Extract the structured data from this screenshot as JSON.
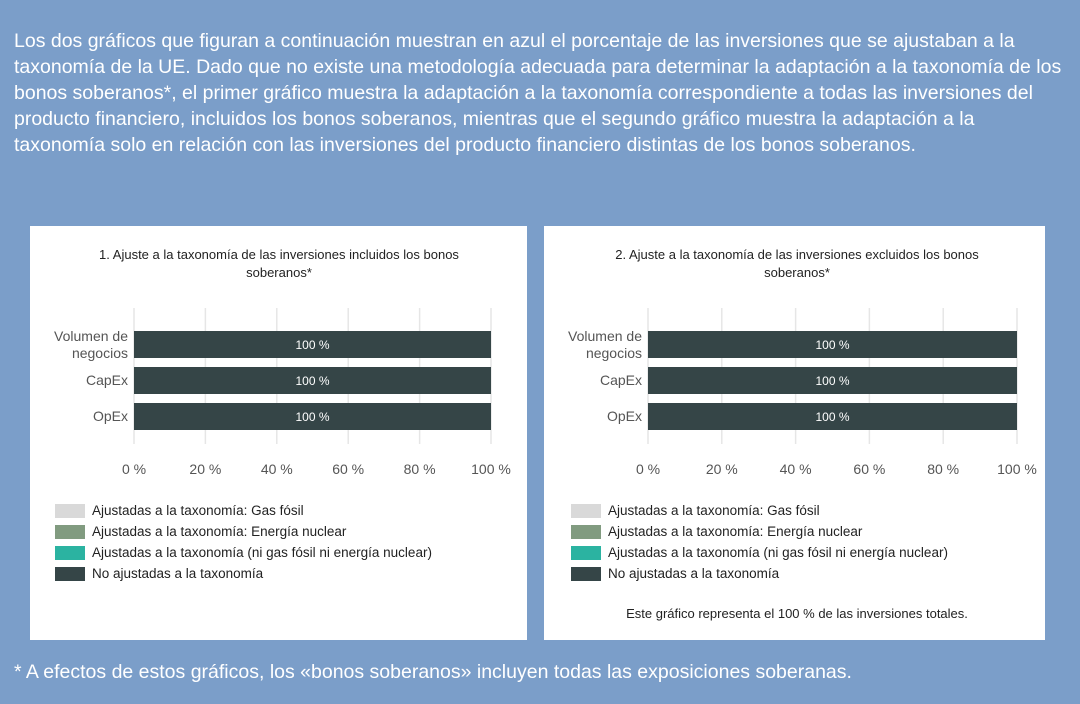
{
  "intro": "Los dos gráficos que figuran a continuación muestran en azul el porcentaje de las inversiones que se ajustaban a la taxonomía de la UE. Dado que no existe una metodología adecuada para determinar la adaptación a la taxonomía de los bonos soberanos*, el primer gráfico muestra la adaptación a la taxonomía correspondiente a todas las inversiones del producto financiero, incluidos los bonos soberanos, mientras que el segundo gráfico muestra la adaptación a la taxonomía solo en relación con las inversiones del producto financiero distintas de los bonos soberanos.",
  "footnote": "* A efectos de estos gráficos, los «bonos soberanos» incluyen todas las exposiciones soberanas.",
  "chart_data": [
    {
      "type": "stacked-barh",
      "title": "1. Ajuste a la taxonomía de las inversiones incluidos los bonos soberanos*",
      "categories": [
        "Volumen de negocios",
        "CapEx",
        "OpEx"
      ],
      "series": [
        {
          "name": "Ajustadas a la taxonomía: Gas fósil",
          "color": "#d9d9d9",
          "values": [
            0,
            0,
            0
          ]
        },
        {
          "name": "Ajustadas a la taxonomía: Energía nuclear",
          "color": "#819b80",
          "values": [
            0,
            0,
            0
          ]
        },
        {
          "name": "Ajustadas a la taxonomía (ni gas fósil ni energía nuclear)",
          "color": "#2bb3a1",
          "values": [
            0,
            0,
            0
          ]
        },
        {
          "name": "No ajustadas a la taxonomía",
          "color": "#354547",
          "values": [
            100,
            100,
            100
          ],
          "value_labels": [
            "100 %",
            "100 %",
            "100 %"
          ]
        }
      ],
      "xlim": [
        0,
        100
      ],
      "xticks": [
        {
          "value": 0,
          "label": "0 %"
        },
        {
          "value": 20,
          "label": "20 %"
        },
        {
          "value": 40,
          "label": "40 %"
        },
        {
          "value": 60,
          "label": "60 %"
        },
        {
          "value": 80,
          "label": "80 %"
        },
        {
          "value": 100,
          "label": "100 %"
        }
      ],
      "grid": true
    },
    {
      "type": "stacked-barh",
      "title": "2. Ajuste a la taxonomía de las inversiones excluidos los bonos soberanos*",
      "categories": [
        "Volumen de negocios",
        "CapEx",
        "OpEx"
      ],
      "series": [
        {
          "name": "Ajustadas a la taxonomía: Gas fósil",
          "color": "#d9d9d9",
          "values": [
            0,
            0,
            0
          ]
        },
        {
          "name": "Ajustadas a la taxonomía: Energía nuclear",
          "color": "#819b80",
          "values": [
            0,
            0,
            0
          ]
        },
        {
          "name": "Ajustadas a la taxonomía (ni gas fósil ni energía nuclear)",
          "color": "#2bb3a1",
          "values": [
            0,
            0,
            0
          ]
        },
        {
          "name": "No ajustadas a la taxonomía",
          "color": "#354547",
          "values": [
            100,
            100,
            100
          ],
          "value_labels": [
            "100 %",
            "100 %",
            "100 %"
          ]
        }
      ],
      "xlim": [
        0,
        100
      ],
      "xticks": [
        {
          "value": 0,
          "label": "0 %"
        },
        {
          "value": 20,
          "label": "20 %"
        },
        {
          "value": 40,
          "label": "40 %"
        },
        {
          "value": 60,
          "label": "60 %"
        },
        {
          "value": 80,
          "label": "80 %"
        },
        {
          "value": 100,
          "label": "100 %"
        }
      ],
      "grid": true,
      "note": "Este gráfico representa el 100 % de las inversiones totales."
    }
  ]
}
